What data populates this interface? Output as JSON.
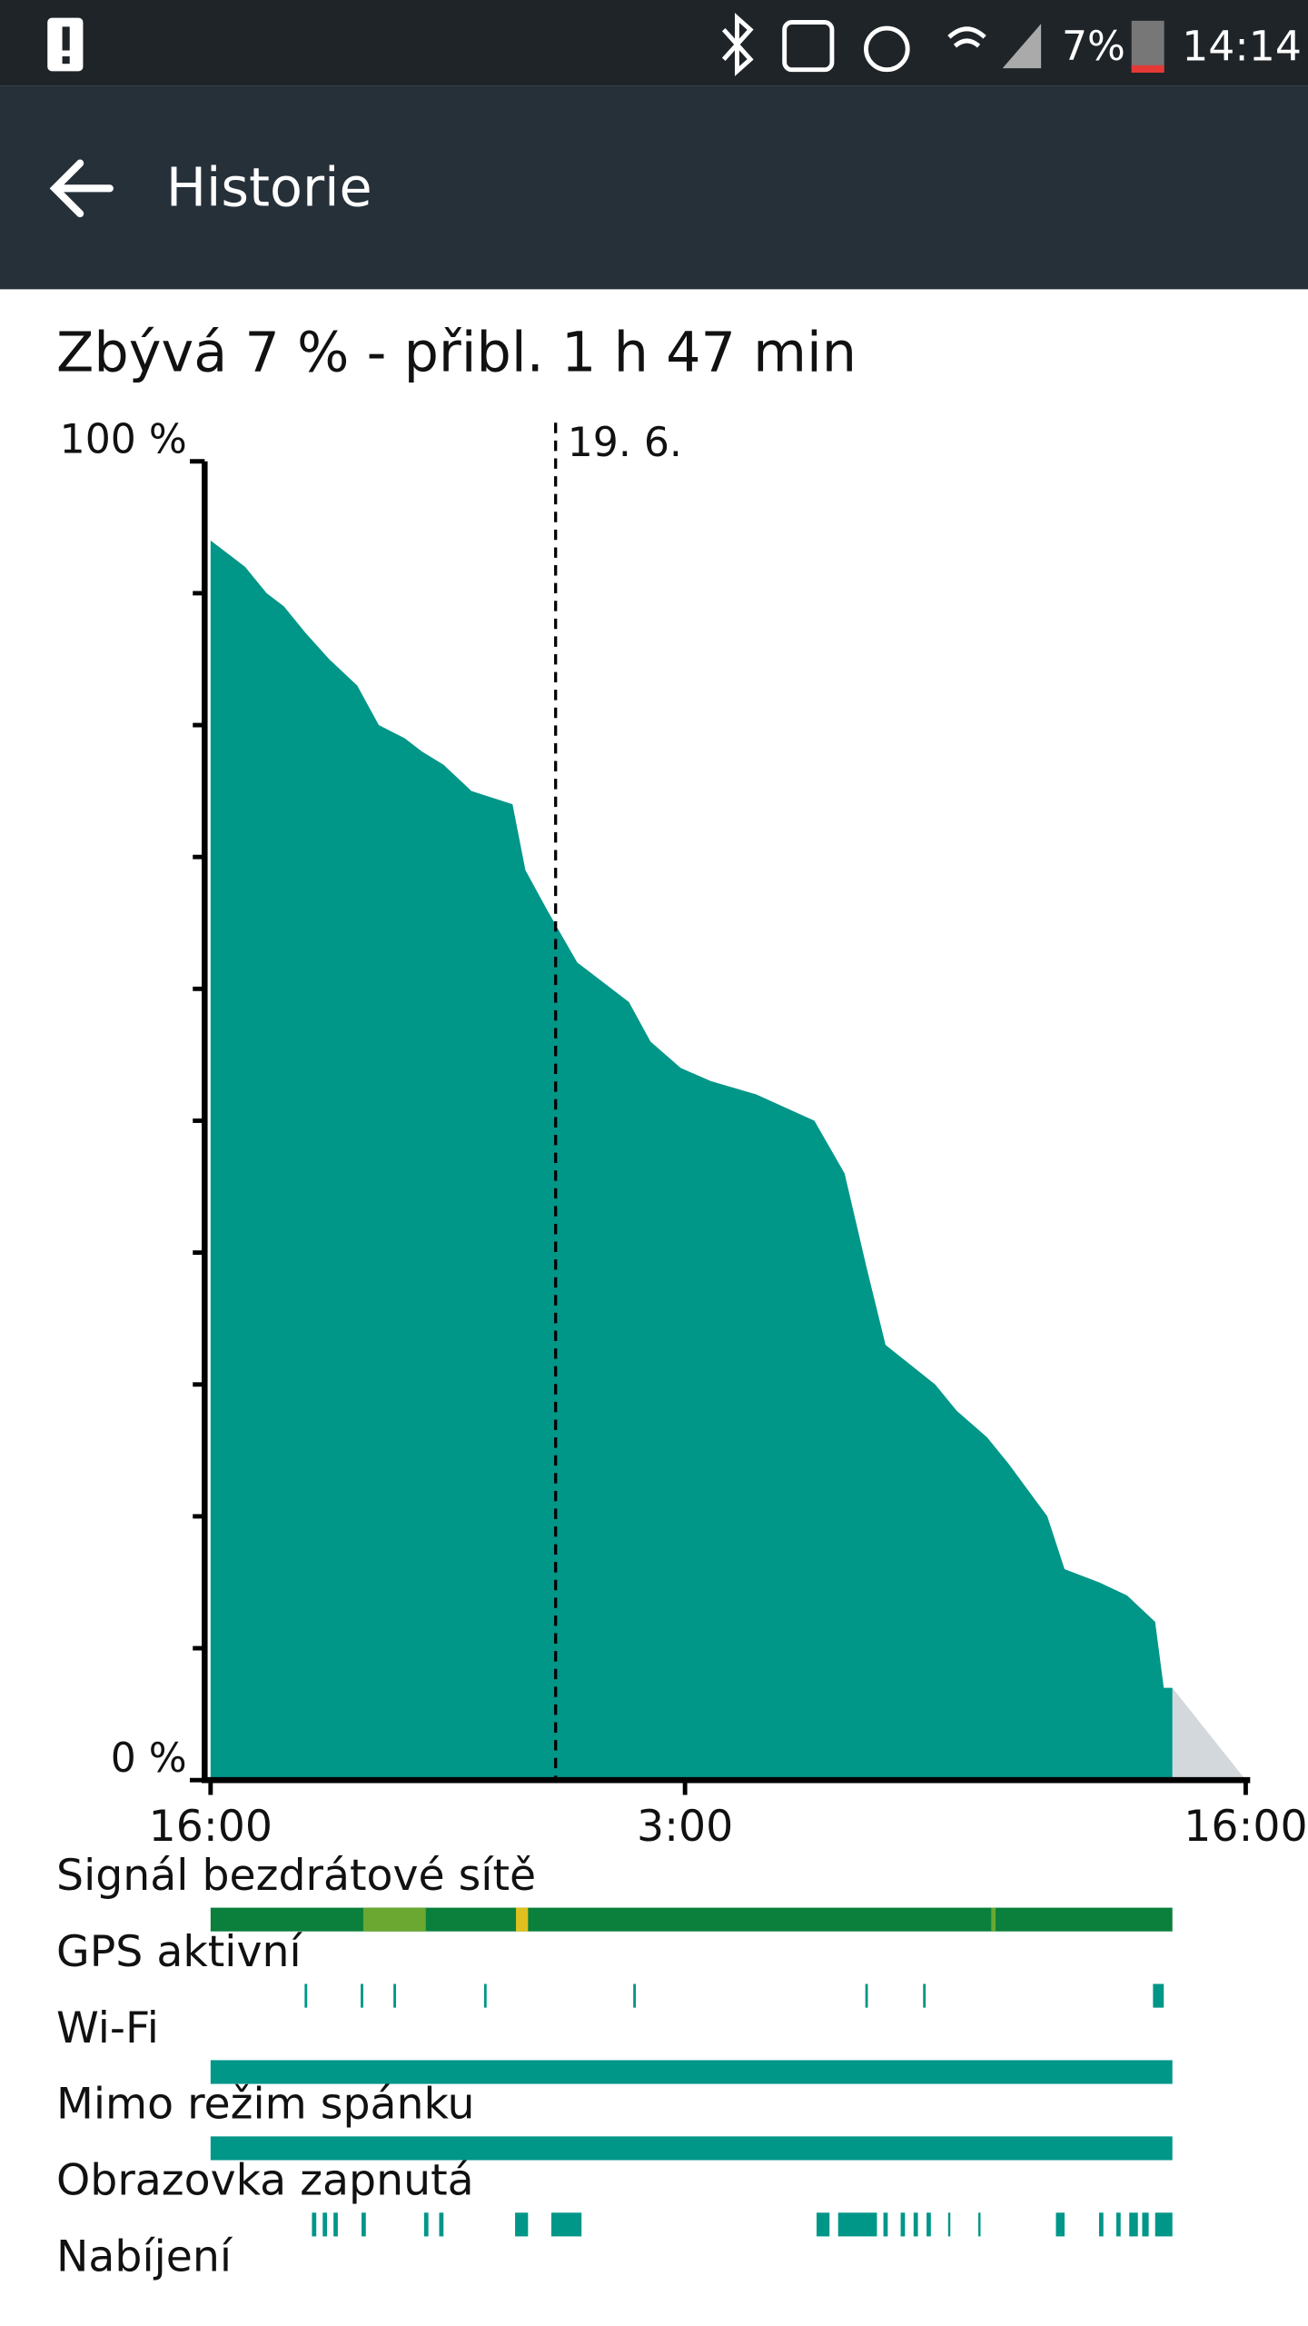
{
  "status_bar": {
    "battery": "7%",
    "time": "14:14"
  },
  "app_bar": {
    "title": "Historie"
  },
  "chart_data": {
    "type": "area",
    "title": "Zbývá 7 % - přibl. 1 h 47 min",
    "x": [
      0,
      0.8,
      1.3,
      1.7,
      2.2,
      2.75,
      3.4,
      3.9,
      4.5,
      4.9,
      5.4,
      6.05,
      7.0,
      7.3,
      7.8,
      8.5,
      8.9,
      9.7,
      10.2,
      10.9,
      11.6,
      12.65,
      14.0,
      14.7,
      15.2,
      15.65,
      16.8,
      17.3,
      18.0,
      18.5,
      19.4,
      19.8,
      20.6,
      21.25,
      21.9,
      22.1,
      22.3
    ],
    "values": [
      94,
      92,
      90,
      89,
      87,
      85,
      83,
      80,
      79,
      78,
      77,
      75,
      74,
      69,
      66,
      62,
      61,
      59,
      56,
      54,
      53,
      52,
      50,
      46,
      39,
      33,
      30,
      28,
      26,
      24,
      20,
      16,
      15,
      14,
      12,
      7,
      7
    ],
    "color": "#009688",
    "projection": {
      "x": [
        22.3,
        24
      ],
      "values": [
        7,
        0
      ],
      "color": "#d3d8dc"
    },
    "xlim": [
      0,
      24
    ],
    "xticks": [
      {
        "value": 0,
        "label": "16:00"
      },
      {
        "value": 11,
        "label": "3:00"
      },
      {
        "value": 24,
        "label": "16:00"
      }
    ],
    "ylim": [
      0,
      100
    ],
    "yticks": [
      {
        "value": 0,
        "label": "0 %"
      },
      {
        "value": 100,
        "label": "100 %"
      }
    ],
    "yticks_minor": [
      10,
      20,
      30,
      40,
      50,
      60,
      70,
      80,
      90
    ],
    "annotations": [
      {
        "x": 8,
        "label": "19. 6."
      }
    ],
    "state_rows": [
      {
        "label": "Signál bezdrátové sítě",
        "color": "#0b7f3c",
        "segments": [
          [
            0,
            22.3
          ],
          [
            3.54,
            4.99
          ],
          [
            7.08,
            7.36
          ],
          [
            18.1,
            18.2
          ]
        ],
        "colors": [
          "#0b7f3c",
          "#6aa832",
          "#e0c020",
          "#6aa832"
        ]
      },
      {
        "label": "GPS aktivní",
        "color": "#009688",
        "segments": [
          [
            2.18,
            2.24
          ],
          [
            3.48,
            3.54
          ],
          [
            4.24,
            4.3
          ],
          [
            6.34,
            6.4
          ],
          [
            9.8,
            9.86
          ],
          [
            15.18,
            15.24
          ],
          [
            16.52,
            16.58
          ],
          [
            21.85,
            22.1
          ]
        ]
      },
      {
        "label": "Wi-Fi",
        "color": "#009688",
        "segments": [
          [
            0,
            22.3
          ]
        ]
      },
      {
        "label": "Mimo režim spánku",
        "color": "#009688",
        "segments": [
          [
            0,
            22.3
          ]
        ]
      },
      {
        "label": "Obrazovka zapnutá",
        "color": "#009688",
        "segments": [
          [
            2.35,
            2.45
          ],
          [
            2.6,
            2.7
          ],
          [
            2.85,
            2.95
          ],
          [
            3.5,
            3.6
          ],
          [
            4.95,
            5.05
          ],
          [
            5.3,
            5.4
          ],
          [
            7.06,
            7.36
          ],
          [
            7.9,
            8.6
          ],
          [
            14.05,
            14.35
          ],
          [
            14.55,
            15.45
          ],
          [
            15.6,
            15.7
          ],
          [
            16.0,
            16.1
          ],
          [
            16.3,
            16.4
          ],
          [
            16.6,
            16.7
          ],
          [
            17.1,
            17.15
          ],
          [
            17.8,
            17.85
          ],
          [
            19.6,
            19.8
          ],
          [
            20.6,
            20.7
          ],
          [
            21.0,
            21.1
          ],
          [
            21.3,
            21.5
          ],
          [
            21.6,
            21.75
          ],
          [
            21.9,
            22.3
          ]
        ]
      },
      {
        "label": "Nabíjení",
        "color": "#009688",
        "segments": []
      }
    ]
  }
}
